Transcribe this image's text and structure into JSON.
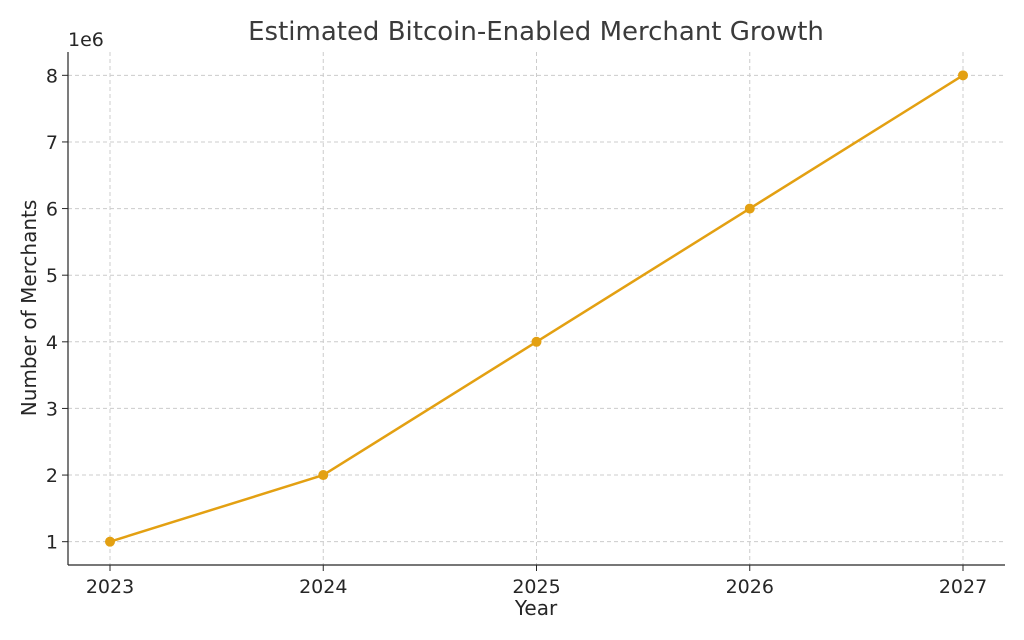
{
  "chart_data": {
    "type": "line",
    "title": "Estimated Bitcoin-Enabled Merchant Growth",
    "xlabel": "Year",
    "ylabel": "Number of Merchants",
    "y_offset_label": "1e6",
    "x": [
      "2023",
      "2024",
      "2025",
      "2026",
      "2027"
    ],
    "series": [
      {
        "values": [
          1000000,
          2000000,
          4000000,
          6000000,
          8000000
        ]
      }
    ],
    "y_ticks": [
      1,
      2,
      3,
      4,
      5,
      6,
      7,
      8
    ],
    "y_tick_multiplier": 1000000,
    "ylim": [
      650000,
      8350000
    ],
    "grid": true,
    "line_color": "#e3a012",
    "marker": "circle"
  }
}
